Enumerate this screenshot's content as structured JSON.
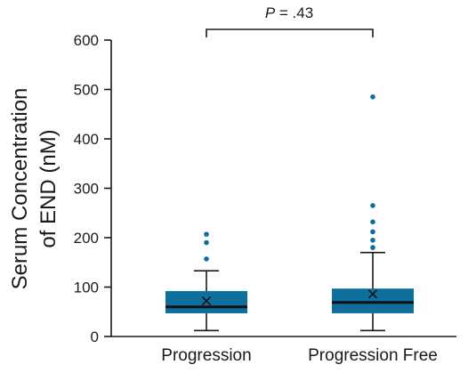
{
  "chart_data": {
    "type": "box",
    "ylabel_line1": "Serum Concentration",
    "ylabel_line2": "of END (nM)",
    "ylim": [
      0,
      600
    ],
    "yticks": [
      0,
      100,
      200,
      300,
      400,
      500,
      600
    ],
    "yticks_labels": [
      "0",
      "100",
      "200",
      "300",
      "400",
      "500",
      "600"
    ],
    "categories": [
      "Progression",
      "Progression Free"
    ],
    "boxes": [
      {
        "category": "Progression",
        "min": 12,
        "q1": 47,
        "median": 60,
        "q3": 92,
        "max": 133,
        "mean": 72,
        "outliers": [
          157,
          190,
          207
        ]
      },
      {
        "category": "Progression Free",
        "min": 12,
        "q1": 47,
        "median": 69,
        "q3": 97,
        "max": 170,
        "mean": 86,
        "outliers": [
          180,
          195,
          212,
          232,
          265,
          485
        ]
      }
    ],
    "annotation": {
      "p_symbol": "P",
      "p_rest": " = .43"
    },
    "colors": {
      "box": "#0e6e9c",
      "outlier": "#0e6e9c",
      "axis": "#1a1a1a"
    }
  }
}
